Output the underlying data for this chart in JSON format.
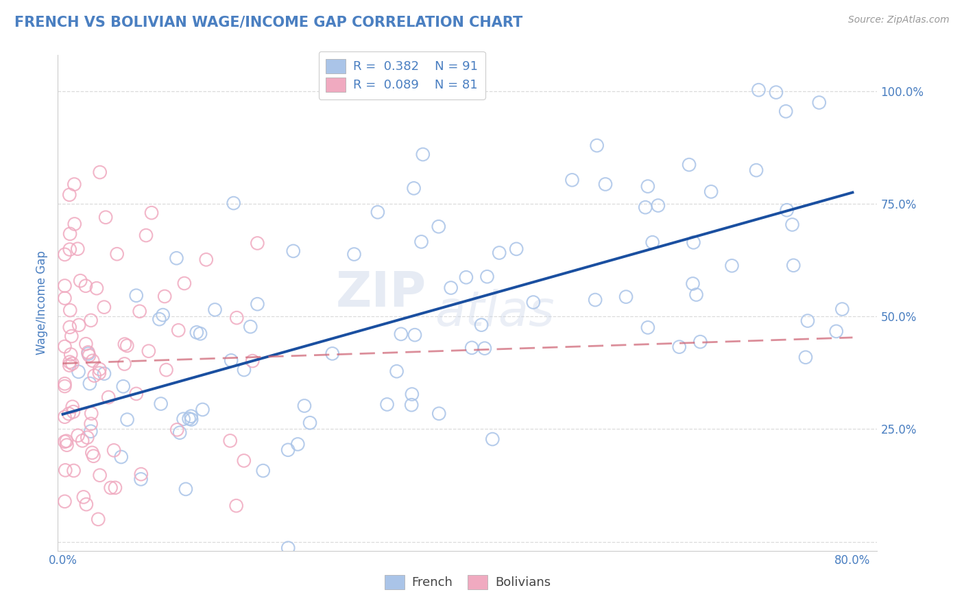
{
  "title": "FRENCH VS BOLIVIAN WAGE/INCOME GAP CORRELATION CHART",
  "source": "Source: ZipAtlas.com",
  "ylabel": "Wage/Income Gap",
  "title_color": "#4a7fc1",
  "source_color": "#999999",
  "french_color": "#aac4e8",
  "bolivian_color": "#f0aac0",
  "french_line_color": "#1a4fa0",
  "bolivian_line_color": "#d06878",
  "axis_label_color": "#4a7fc1",
  "tick_color": "#4a7fc1",
  "grid_color": "#cccccc",
  "R_french": 0.382,
  "N_french": 91,
  "R_bolivian": 0.089,
  "N_bolivian": 81,
  "xlim_min": -0.005,
  "xlim_max": 0.825,
  "ylim_min": -0.02,
  "ylim_max": 1.08,
  "xtick_vals": [
    0.0,
    0.1,
    0.2,
    0.3,
    0.4,
    0.5,
    0.6,
    0.7,
    0.8
  ],
  "xtick_labels": [
    "0.0%",
    "",
    "",
    "",
    "",
    "",
    "",
    "",
    "80.0%"
  ],
  "ytick_vals": [
    0.0,
    0.25,
    0.5,
    0.75,
    1.0
  ],
  "ytick_labels": [
    "",
    "25.0%",
    "50.0%",
    "75.0%",
    "100.0%"
  ],
  "watermark_line1": "ZIP",
  "watermark_line2": "atlas",
  "legend_label_french": "R =  0.382    N = 91",
  "legend_label_bolivian": "R =  0.089    N = 81",
  "bottom_label_french": "French",
  "bottom_label_bolivian": "Bolivians"
}
